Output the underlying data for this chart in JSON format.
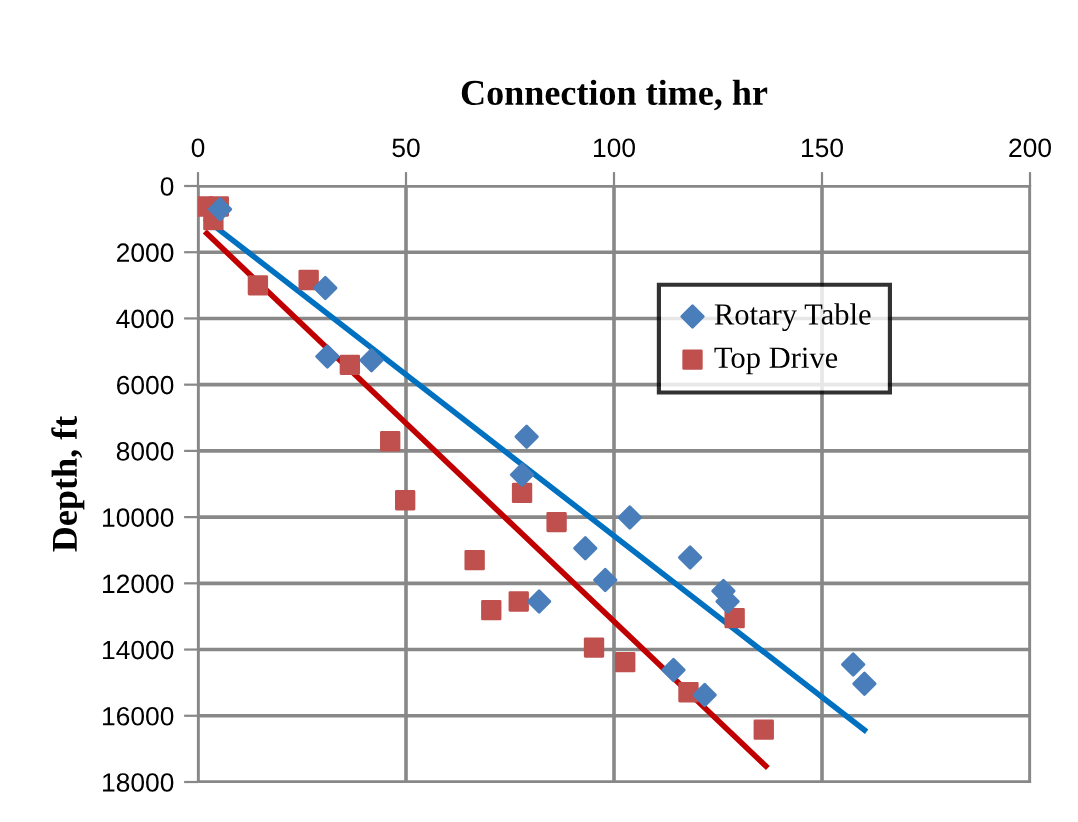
{
  "chart_data": {
    "type": "scatter",
    "title": "Connection time, hr",
    "ylabel": "Depth, ft",
    "xlim": [
      0,
      200
    ],
    "xticks": [
      0,
      50,
      100,
      150,
      200
    ],
    "ylim": [
      18000,
      0
    ],
    "yticks": [
      0,
      2000,
      4000,
      6000,
      8000,
      10000,
      12000,
      14000,
      16000,
      18000
    ],
    "grid": true,
    "legend": "top right",
    "series": [
      {
        "name": "Rotary Table",
        "color": "#4a7ebb",
        "marker": "diamond",
        "x": [
          5.3,
          30.6,
          31.1,
          41.7,
          79,
          77.9,
          103.8,
          93.1,
          97.9,
          82,
          118.3,
          126.3,
          127.3,
          114.3,
          121.8,
          157.5,
          160.2
        ],
        "values": [
          700,
          3080,
          5150,
          5260,
          7570,
          8720,
          10010,
          10940,
          11900,
          12550,
          11220,
          12230,
          12550,
          14620,
          15370,
          14450,
          15030
        ]
      },
      {
        "name": "Top Drive",
        "color": "#c0504d",
        "marker": "square",
        "x": [
          1.3,
          5,
          3.7,
          14.4,
          26.6,
          36.5,
          46.2,
          49.8,
          77.9,
          86.2,
          66.5,
          70.5,
          77.1,
          95.2,
          102.7,
          117.9,
          129,
          136
        ],
        "values": [
          620,
          620,
          1030,
          3000,
          2840,
          5400,
          7710,
          9490,
          9270,
          10150,
          11300,
          12810,
          12550,
          13940,
          14380,
          15290,
          13050,
          16420
        ]
      },
      {
        "type": "line",
        "color": "#0070c0",
        "marker": "none",
        "x": [
          2.1,
          160.2
        ],
        "values": [
          1030,
          16430
        ]
      },
      {
        "type": "line",
        "color": "#c00000",
        "marker": "none",
        "x": [
          2.1,
          136.5
        ],
        "values": [
          1430,
          17520
        ]
      }
    ]
  }
}
